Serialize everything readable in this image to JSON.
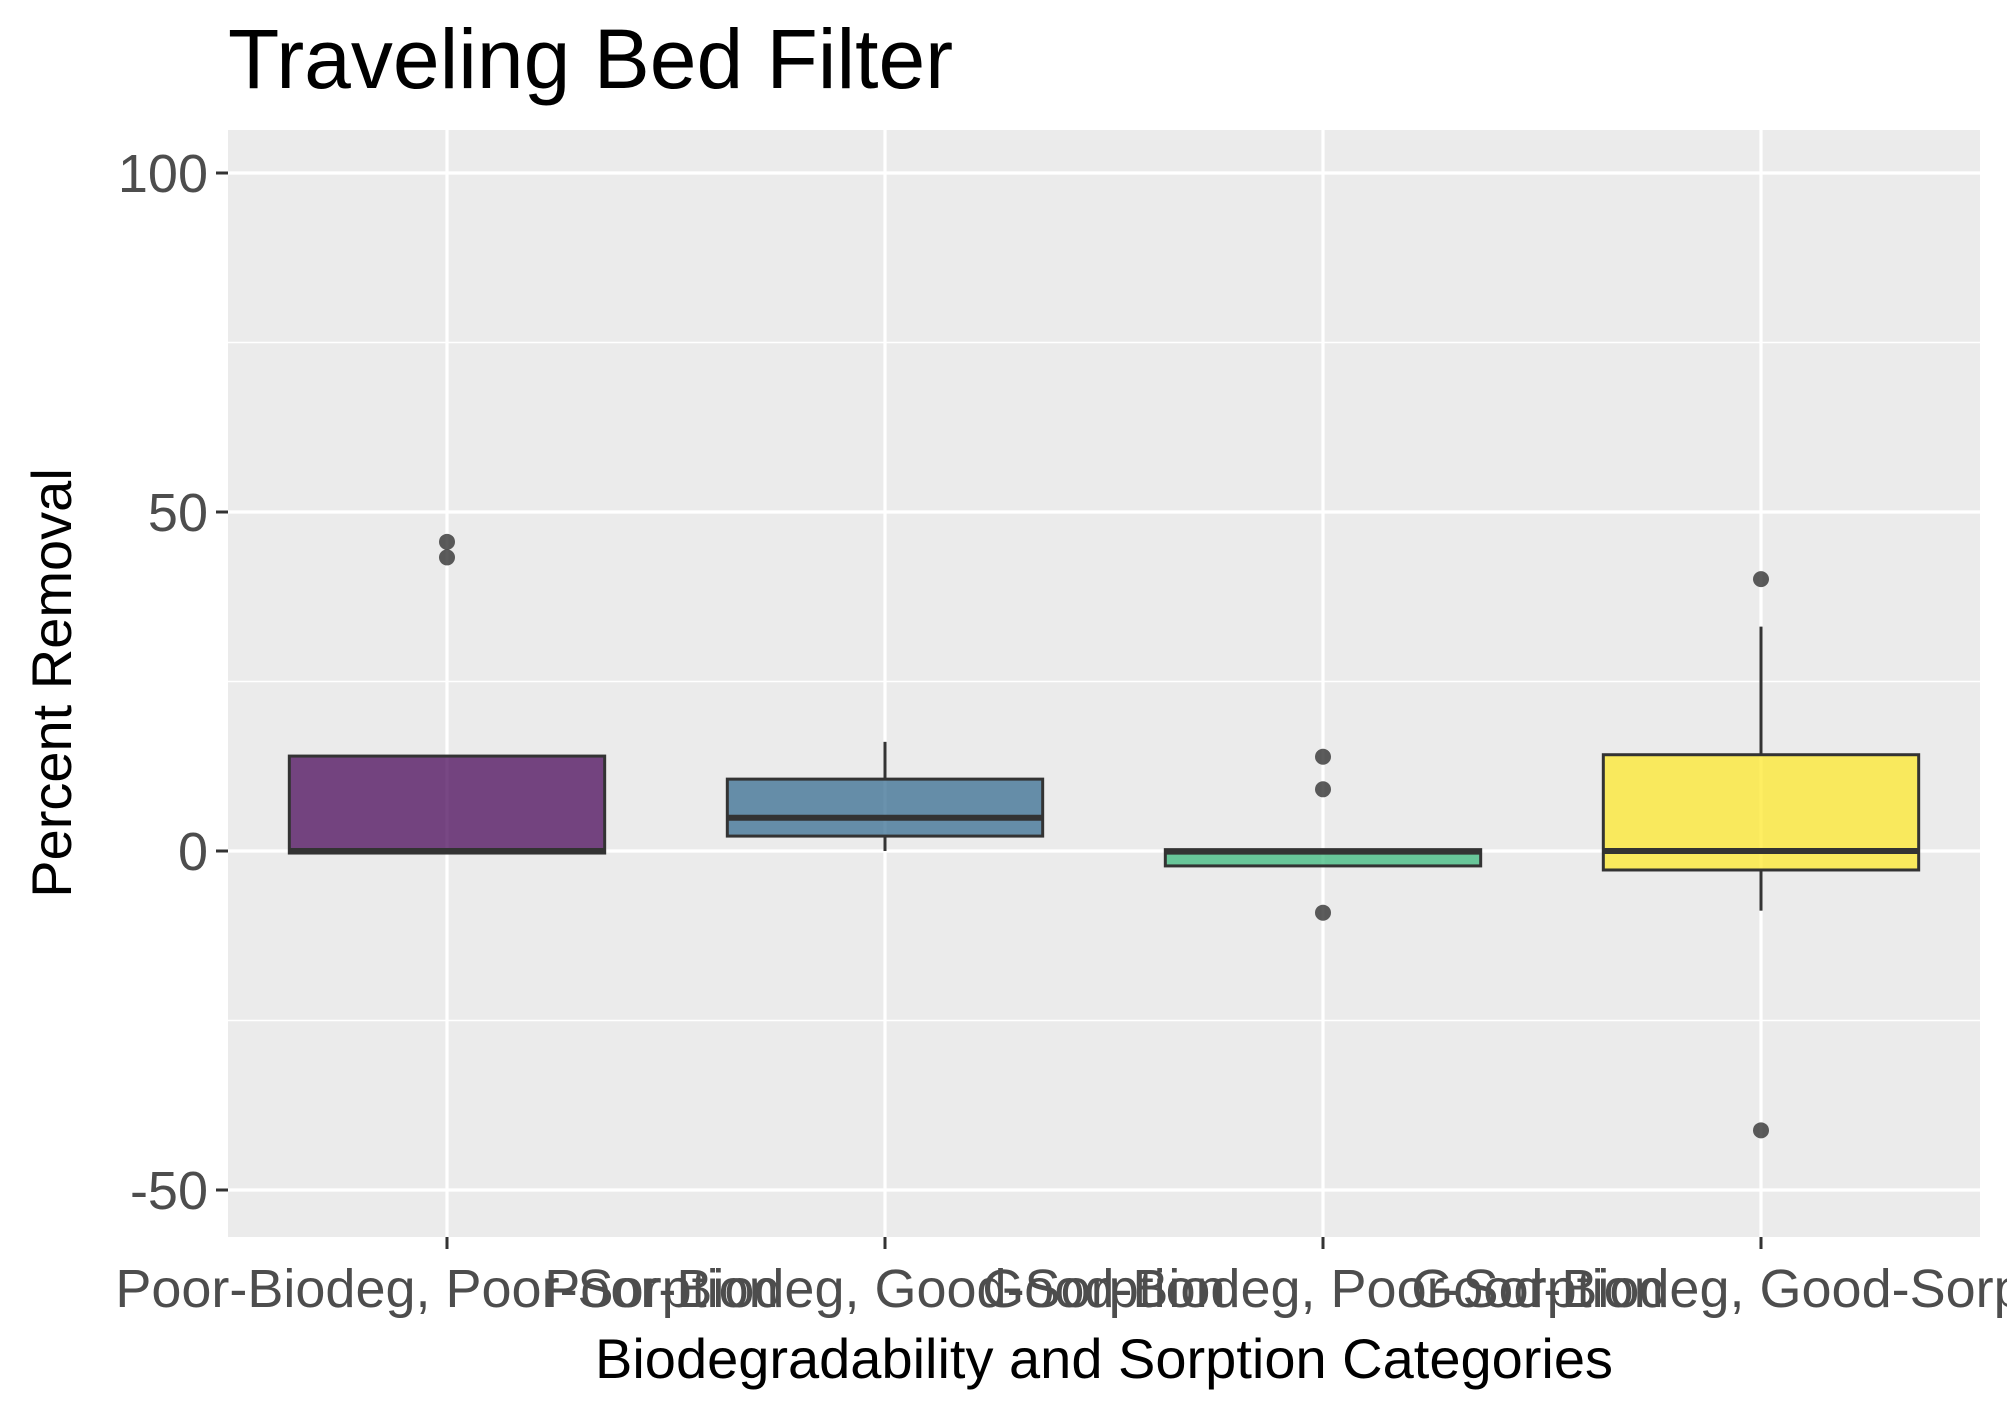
{
  "chart_data": {
    "type": "boxplot",
    "title": "Traveling Bed Filter",
    "xlabel": "Biodegradability and Sorption Categories",
    "ylabel": "Percent Removal",
    "ylim": [
      -57,
      107
    ],
    "yticks": [
      100,
      50,
      0,
      -50
    ],
    "ytick_labels": [
      "100",
      "50",
      "0",
      "-50"
    ],
    "grid": true,
    "legend": "none",
    "panel_color": "#ebebeb",
    "grid_color": "#ffffff",
    "categories": [
      "Poor-Biodeg, Poor-Sorption",
      "Poor-Biodeg, Good-Sorption",
      "Good-Biodeg, Poor-Sorption",
      "Good-Biodeg, Good-Sorption"
    ],
    "boxes": [
      {
        "category": "Poor-Biodeg, Poor-Sorption",
        "q1": -0.3,
        "median": 0,
        "q3": 14,
        "whisker_low": -0.3,
        "whisker_high": 14,
        "outliers": [
          45.6,
          43.3
        ],
        "color": "#440154"
      },
      {
        "category": "Poor-Biodeg, Good-Sorption",
        "q1": 2.2,
        "median": 4.9,
        "q3": 10.6,
        "whisker_low": 0,
        "whisker_high": 16.1,
        "outliers": [],
        "color": "#31688e"
      },
      {
        "category": "Good-Biodeg, Poor-Sorption",
        "q1": -2.2,
        "median": -0.1,
        "q3": 0.2,
        "whisker_low": -2.2,
        "whisker_high": 0.2,
        "outliers": [
          13.9,
          9.1,
          -9.1
        ],
        "color": "#35b779"
      },
      {
        "category": "Good-Biodeg, Good-Sorption",
        "q1": -2.8,
        "median": 0,
        "q3": 14.2,
        "whisker_low": -8.8,
        "whisker_high": 33.1,
        "outliers": [
          40.1,
          -41.2
        ],
        "color": "#fde725"
      }
    ]
  }
}
